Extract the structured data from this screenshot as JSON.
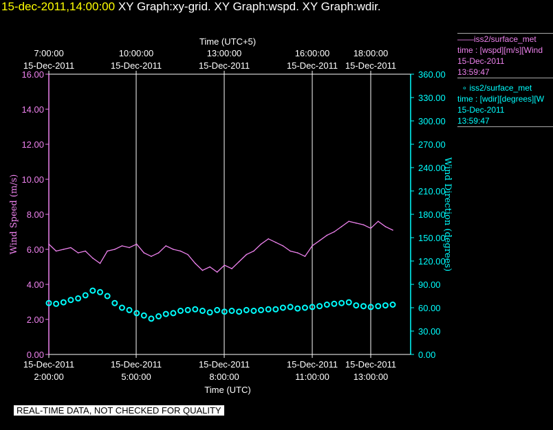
{
  "header": {
    "timestamp": "15-dec-2011,14:00:00",
    "graphs": "XY Graph:xy-grid.  XY Graph:wspd.  XY Graph:wdir."
  },
  "legend": {
    "wspd": {
      "line1": "iss2/surface_met",
      "line2": "time : [wspd][m/s][Wind",
      "line3": "15-Dec-2011",
      "line4": "13:59:47",
      "color": "#ee82ee"
    },
    "wdir": {
      "line1": "iss2/surface_met",
      "line2": "time : [wdir][degrees][W",
      "line3": "15-Dec-2011",
      "line4": "13:59:47",
      "color": "#00ffff"
    }
  },
  "footer": {
    "note": "REAL-TIME DATA, NOT CHECKED FOR QUALITY"
  },
  "chart_data": {
    "type": "line",
    "grid": "vertical lines at major time ticks",
    "x_bottom": {
      "label": "Time (UTC)",
      "ticks": [
        {
          "hours": 2,
          "l1": "15-Dec-2011",
          "l2": "2:00:00"
        },
        {
          "hours": 5,
          "l1": "15-Dec-2011",
          "l2": "5:00:00"
        },
        {
          "hours": 8,
          "l1": "15-Dec-2011",
          "l2": "8:00:00"
        },
        {
          "hours": 11,
          "l1": "15-Dec-2011",
          "l2": "11:00:00"
        },
        {
          "hours": 13,
          "l1": "15-Dec-2011",
          "l2": "13:00:00"
        }
      ]
    },
    "x_top": {
      "label": "Time (UTC+5)",
      "ticks": [
        {
          "hours": 2,
          "l1": "7:00:00",
          "l2": "15-Dec-2011"
        },
        {
          "hours": 5,
          "l1": "10:00:00",
          "l2": "15-Dec-2011"
        },
        {
          "hours": 8,
          "l1": "13:00:00",
          "l2": "15-Dec-2011"
        },
        {
          "hours": 11,
          "l1": "16:00:00",
          "l2": "15-Dec-2011"
        },
        {
          "hours": 13,
          "l1": "18:00:00",
          "l2": "15-Dec-2011"
        }
      ]
    },
    "xlim_hours": [
      2,
      14
    ],
    "y_left": {
      "label": "Wind Speed (m/s)",
      "ylim": [
        0,
        16
      ],
      "ticks": [
        "0.00",
        "2.00",
        "4.00",
        "6.00",
        "8.00",
        "10.00",
        "12.00",
        "14.00",
        "16.00"
      ],
      "color": "#ee82ee"
    },
    "y_right": {
      "label": "Wind Direction (degrees)",
      "ylim": [
        0,
        360
      ],
      "ticks": [
        "0.00",
        "30.00",
        "60.00",
        "90.00",
        "120.00",
        "150.00",
        "180.00",
        "210.00",
        "240.00",
        "270.00",
        "300.00",
        "330.00",
        "360.00"
      ],
      "color": "#00ffff"
    },
    "series": [
      {
        "name": "iss2/surface_met wspd",
        "axis": "left",
        "style": "line",
        "color": "#ee82ee",
        "x_hours": [
          0.0,
          0.25,
          0.5,
          0.75,
          1.0,
          1.25,
          1.5,
          1.75,
          2.0,
          2.25,
          2.5,
          2.75,
          3.0,
          3.25,
          3.5,
          3.75,
          4.0,
          4.25,
          4.5,
          4.75,
          5.0,
          5.25,
          5.5,
          5.75,
          6.0,
          6.25,
          6.5,
          6.75,
          7.0,
          7.25,
          7.5,
          7.75,
          8.0,
          8.25,
          8.5,
          8.75,
          9.0,
          9.25,
          9.5,
          9.75,
          10.0,
          10.25,
          10.5,
          10.75,
          11.0,
          11.25,
          11.5,
          11.75
        ],
        "y": [
          6.3,
          5.9,
          6.0,
          6.1,
          5.8,
          5.9,
          5.5,
          5.2,
          5.9,
          6.0,
          6.2,
          6.1,
          6.3,
          5.8,
          5.6,
          5.8,
          6.2,
          6.0,
          5.9,
          5.7,
          5.2,
          4.8,
          5.0,
          4.7,
          5.1,
          4.9,
          5.3,
          5.7,
          5.9,
          6.3,
          6.6,
          6.4,
          6.2,
          5.9,
          5.8,
          5.6,
          6.2,
          6.5,
          6.8,
          7.0,
          7.3,
          7.6,
          7.5,
          7.4,
          7.2,
          7.6,
          7.3,
          7.1
        ]
      },
      {
        "name": "iss2/surface_met wdir",
        "axis": "right",
        "style": "markers",
        "color": "#00ffff",
        "x_hours": [
          0.0,
          0.25,
          0.5,
          0.75,
          1.0,
          1.25,
          1.5,
          1.75,
          2.0,
          2.25,
          2.5,
          2.75,
          3.0,
          3.25,
          3.5,
          3.75,
          4.0,
          4.25,
          4.5,
          4.75,
          5.0,
          5.25,
          5.5,
          5.75,
          6.0,
          6.25,
          6.5,
          6.75,
          7.0,
          7.25,
          7.5,
          7.75,
          8.0,
          8.25,
          8.5,
          8.75,
          9.0,
          9.25,
          9.5,
          9.75,
          10.0,
          10.25,
          10.5,
          10.75,
          11.0,
          11.25,
          11.5,
          11.75
        ],
        "y": [
          66,
          65,
          67,
          70,
          72,
          76,
          82,
          80,
          75,
          66,
          60,
          57,
          53,
          50,
          46,
          49,
          52,
          53,
          56,
          57,
          58,
          56,
          54,
          57,
          55,
          56,
          55,
          57,
          56,
          57,
          58,
          58,
          60,
          61,
          59,
          60,
          61,
          62,
          64,
          65,
          66,
          67,
          63,
          62,
          61,
          62,
          63,
          64
        ]
      }
    ]
  }
}
